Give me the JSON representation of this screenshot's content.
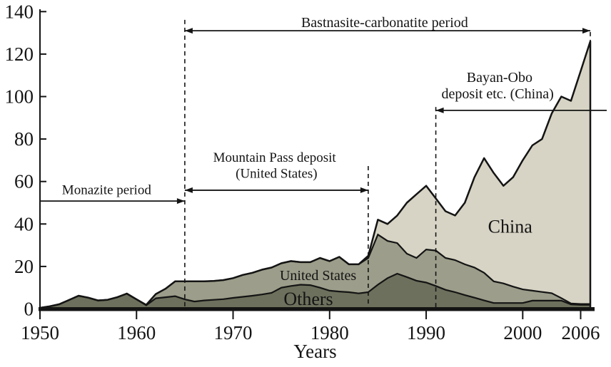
{
  "chart_data": {
    "type": "area",
    "stacked": true,
    "title": "",
    "xlabel": "Years",
    "ylabel": "",
    "x_range": [
      1950,
      2007
    ],
    "ylim": [
      0,
      140
    ],
    "yticks": [
      0,
      20,
      40,
      60,
      80,
      100,
      120,
      140
    ],
    "xticks": [
      1950,
      1960,
      1970,
      1980,
      1990,
      2000,
      2006
    ],
    "grid": false,
    "legend_position": "none",
    "ink_color": "#141414",
    "x": [
      1950,
      1951,
      1952,
      1953,
      1954,
      1955,
      1956,
      1957,
      1958,
      1959,
      1960,
      1961,
      1962,
      1963,
      1964,
      1965,
      1966,
      1967,
      1968,
      1969,
      1970,
      1971,
      1972,
      1973,
      1974,
      1975,
      1976,
      1977,
      1978,
      1979,
      1980,
      1981,
      1982,
      1983,
      1984,
      1985,
      1986,
      1987,
      1988,
      1989,
      1990,
      1991,
      1992,
      1993,
      1994,
      1995,
      1996,
      1997,
      1998,
      1999,
      2000,
      2001,
      2002,
      2003,
      2004,
      2005,
      2006,
      2007
    ],
    "series": [
      {
        "name": "Others",
        "color": "#6d705c",
        "values": [
          0.5,
          1.2,
          2.2,
          4.2,
          6.2,
          5.3,
          4.0,
          4.3,
          5.5,
          7.2,
          4.5,
          1.7,
          5.0,
          5.5,
          6.0,
          4.5,
          3.5,
          4.0,
          4.3,
          4.6,
          5.2,
          5.7,
          6.2,
          6.8,
          7.6,
          10.0,
          10.8,
          11.4,
          11.2,
          10.0,
          8.6,
          8.2,
          7.9,
          7.3,
          7.9,
          11.4,
          14.5,
          16.6,
          15.0,
          13.3,
          12.4,
          10.8,
          9.0,
          7.9,
          6.5,
          5.3,
          4.0,
          2.8,
          2.8,
          2.8,
          2.8,
          3.9,
          3.9,
          3.9,
          3.9,
          2.1,
          1.9,
          1.9
        ]
      },
      {
        "name": "United States",
        "color": "#9c9d8a",
        "values": [
          0,
          0,
          0,
          0,
          0,
          0,
          0,
          0,
          0,
          0,
          0,
          0.2,
          2.0,
          4.0,
          7.0,
          8.5,
          9.5,
          9.0,
          8.9,
          9.0,
          9.3,
          10.3,
          10.8,
          11.7,
          11.9,
          11.5,
          11.7,
          10.6,
          10.8,
          14.0,
          13.9,
          16.3,
          13.1,
          13.7,
          16.1,
          23.6,
          17.5,
          14.4,
          11.0,
          10.7,
          15.6,
          16.7,
          15.0,
          15.1,
          14.5,
          14.2,
          13.0,
          10.2,
          9.2,
          7.7,
          6.4,
          4.7,
          4.1,
          3.5,
          1.2,
          0.5,
          0.4,
          0.4
        ]
      },
      {
        "name": "China",
        "color": "#d7d4c5",
        "values": [
          0,
          0,
          0,
          0,
          0,
          0,
          0,
          0,
          0,
          0,
          0,
          0,
          0,
          0,
          0,
          0,
          0,
          0,
          0,
          0,
          0,
          0,
          0,
          0,
          0,
          0,
          0,
          0,
          0,
          0,
          0,
          0,
          0,
          0,
          1.0,
          7.0,
          8.0,
          13.0,
          24.0,
          30.0,
          30.0,
          24.5,
          22.0,
          21.0,
          29.0,
          42.5,
          54.0,
          51.0,
          46.0,
          51.5,
          60.8,
          68.4,
          72.0,
          84.6,
          94.9,
          95.4,
          109.7,
          123.7
        ]
      }
    ],
    "area_labels": [
      {
        "text": "United States",
        "year": 1978.8,
        "val": 15.9,
        "size": 20
      },
      {
        "text": "Others",
        "year": 1977.8,
        "val": 4.9,
        "size": 26
      },
      {
        "text": "China",
        "year": 1998.7,
        "val": 39.0,
        "size": 26
      }
    ],
    "annotations": [
      {
        "id": "monazite-period",
        "text_lines": [
          {
            "text": "Monazite period",
            "year": 1956.9,
            "val": 56.2,
            "size": 19
          }
        ],
        "arrow": {
          "from_year": 1950,
          "to_year": 1965,
          "val": 50.8,
          "head_left": false,
          "head_right": true
        }
      },
      {
        "id": "mountain-pass-deposit",
        "text_lines": [
          {
            "text": "Mountain Pass deposit",
            "year": 1974.3,
            "val": 71.6,
            "size": 19
          },
          {
            "text": "(United States)",
            "year": 1974.5,
            "val": 63.9,
            "size": 19
          }
        ],
        "arrow": {
          "from_year": 1965,
          "to_year": 1984,
          "val": 55.9,
          "head_left": true,
          "head_right": true
        }
      },
      {
        "id": "bastnasite-carbonatite-period",
        "text_lines": [
          {
            "text": "Bastnasite-carbonatite period",
            "year": 1985.7,
            "val": 135.1,
            "size": 20
          }
        ],
        "arrow": {
          "from_year": 1965,
          "to_year": 2007,
          "val": 131.0,
          "head_left": true,
          "head_right": true
        }
      },
      {
        "id": "bayan-obo-deposit",
        "text_lines": [
          {
            "text": "Bayan-Obo",
            "year": 1997.6,
            "val": 109.2,
            "size": 20
          },
          {
            "text": "deposit etc. (China)",
            "year": 1997.4,
            "val": 101.5,
            "size": 20
          }
        ],
        "arrow": {
          "from_year": 1991,
          "to_year": 2008.7,
          "val": 93.5,
          "head_left": true,
          "head_right": false
        }
      }
    ],
    "dashed_lines": [
      {
        "year": 1965,
        "top_val": 136.1,
        "bottom_val": 0
      },
      {
        "year": 1984,
        "top_val": 67.3,
        "bottom_val": 0
      },
      {
        "year": 1991,
        "top_val": 95.1,
        "bottom_val": 0
      },
      {
        "year": 2007,
        "top_val": 130.4,
        "bottom_val": 125.0
      }
    ]
  }
}
